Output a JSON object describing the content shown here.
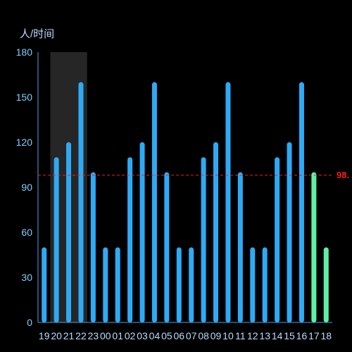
{
  "chart_data": {
    "type": "bar",
    "y_unit_label": "人/时间",
    "categories": [
      "19",
      "20",
      "21",
      "22",
      "23",
      "00",
      "01",
      "02",
      "03",
      "04",
      "05",
      "06",
      "07",
      "08",
      "09",
      "10",
      "11",
      "12",
      "13",
      "14",
      "15",
      "16",
      "17",
      "18"
    ],
    "values": [
      50,
      110,
      120,
      160,
      100,
      50,
      50,
      110,
      120,
      160,
      100,
      50,
      50,
      110,
      120,
      160,
      100,
      50,
      50,
      110,
      120,
      160,
      100,
      50
    ],
    "ylim": [
      0,
      180
    ],
    "yticks": [
      0,
      30,
      60,
      90,
      120,
      150,
      180
    ],
    "ytick_labels": [
      "0",
      "30",
      "60",
      "90",
      "120",
      "150",
      "180"
    ],
    "average_line": {
      "value": 98,
      "label": "98."
    },
    "highlight_band_categories": [
      "20",
      "22"
    ],
    "highlight_bar_categories": [
      "17",
      "18"
    ],
    "grid": false,
    "colors": {
      "bar": "#2eaaf5",
      "bar_highlight": "#5ef0a5",
      "average_line": "#ff1a1a",
      "band": "#262626",
      "axis": "#4aa3e0",
      "background": "#000000"
    }
  }
}
